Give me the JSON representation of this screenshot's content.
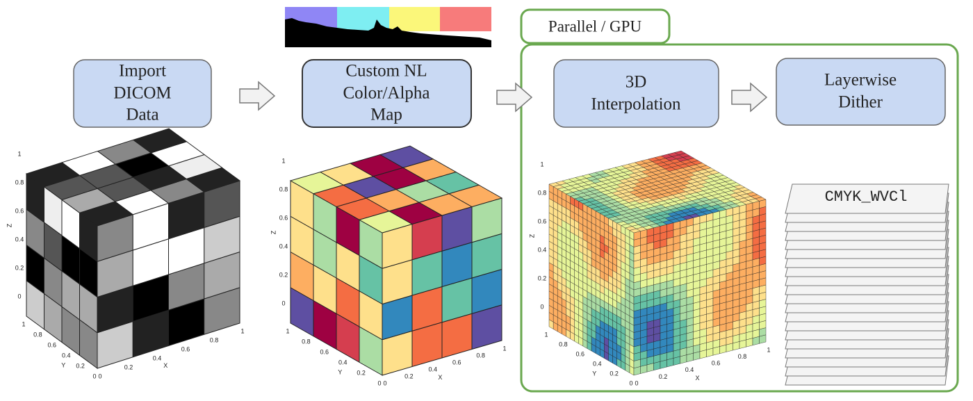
{
  "group": {
    "label": "Parallel / GPU"
  },
  "nodes": [
    {
      "lines": [
        "Import",
        "DICOM",
        "Data"
      ]
    },
    {
      "lines": [
        "Custom NL",
        "Color/Alpha",
        "Map"
      ]
    },
    {
      "lines": [
        "3D",
        "Interpolation"
      ]
    },
    {
      "lines": [
        "Layerwise",
        "Dither"
      ]
    }
  ],
  "stack_label": "CMYK_WVCl",
  "plots": [
    {
      "z_ticks": [
        "0",
        "0.2",
        "0.4",
        "0.6",
        "0.8",
        "1"
      ],
      "y_ticks": [
        "1",
        "0.8",
        "0.6",
        "0.4",
        "0.2",
        "0"
      ],
      "x_ticks": [
        "0",
        "0.2",
        "0.4",
        "0.6",
        "0.8",
        "1"
      ],
      "x_label": "X",
      "y_label": "Y",
      "z_label": "Z"
    },
    {
      "z_ticks": [
        "0",
        "0.2",
        "0.4",
        "0.6",
        "0.8",
        "1"
      ],
      "y_ticks": [
        "1",
        "0.8",
        "0.6",
        "0.4",
        "0.2",
        "0"
      ],
      "x_ticks": [
        "0",
        "0.2",
        "0.4",
        "0.6",
        "0.8",
        "1"
      ],
      "x_label": "X",
      "y_label": "Y",
      "z_label": "Z"
    },
    {
      "z_ticks": [
        "0",
        "0.2",
        "0.4",
        "0.6",
        "0.8",
        "1"
      ],
      "y_ticks": [
        "1",
        "0.8",
        "0.6",
        "0.4",
        "0.2",
        "0"
      ],
      "x_ticks": [
        "0",
        "0.2",
        "0.4",
        "0.6",
        "0.8",
        "1"
      ],
      "x_label": "X",
      "y_label": "Y",
      "z_label": "Z"
    }
  ]
}
